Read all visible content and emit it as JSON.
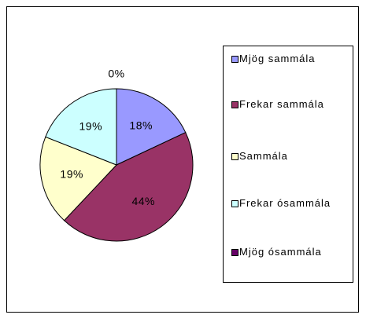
{
  "chart_data": {
    "type": "pie",
    "categories": [
      "Mjög sammála",
      "Frekar sammála",
      "Sammála",
      "Frekar ósammála",
      "Mjög ósammála"
    ],
    "values": [
      18,
      44,
      19,
      19,
      0
    ],
    "value_labels": [
      "18%",
      "44%",
      "19%",
      "19%",
      "0%"
    ],
    "colors": [
      "#9999ff",
      "#993366",
      "#ffffcc",
      "#ccffff",
      "#660066"
    ]
  }
}
